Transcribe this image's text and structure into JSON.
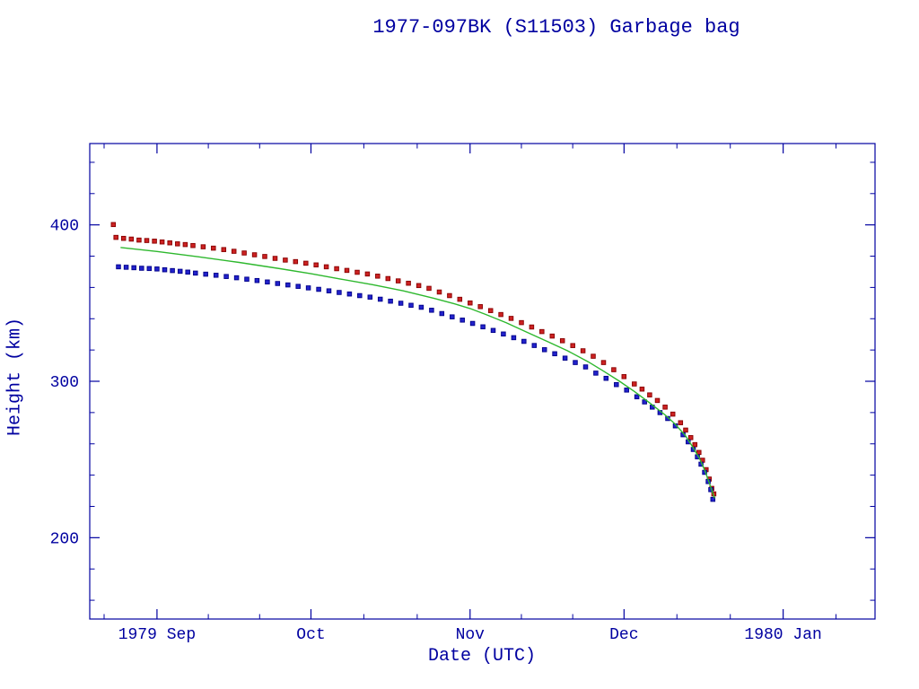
{
  "page": {
    "background": "#ffffff",
    "text_color": "#0000a0",
    "axis_color": "#0000a0"
  },
  "chart_data": {
    "type": "scatter",
    "title": "1977-097BK (S11503) Garbage bag",
    "xlabel": "Date (UTC)",
    "ylabel": "Height (km)",
    "grid": false,
    "legend": "none",
    "x_unit": "days since 1979-09-01",
    "xlim": [
      -13.1,
      139.9
    ],
    "ylim": [
      148,
      452
    ],
    "x_ticks": [
      {
        "t": 0,
        "label": "1979 Sep"
      },
      {
        "t": 30,
        "label": "Oct"
      },
      {
        "t": 61,
        "label": "Nov"
      },
      {
        "t": 91,
        "label": "Dec"
      },
      {
        "t": 122,
        "label": "1980 Jan"
      }
    ],
    "x_minor_ticks": [
      -10.3,
      10,
      20,
      40.3,
      50.7,
      71,
      81,
      101.3,
      111.7,
      132.3
    ],
    "y_ticks": [
      {
        "v": 200,
        "label": "200"
      },
      {
        "v": 300,
        "label": "300"
      },
      {
        "v": 400,
        "label": "400"
      }
    ],
    "y_minor_ticks": [
      160,
      180,
      220,
      240,
      260,
      280,
      320,
      340,
      360,
      380,
      420,
      440
    ],
    "series": [
      {
        "name": "apogee-height",
        "kind": "scatter",
        "marker": "square",
        "color": "#cc2222",
        "edge_color": "#880000",
        "points": [
          [
            -8.5,
            400.2
          ],
          [
            -8,
            392.0
          ],
          [
            -6.5,
            391.4
          ],
          [
            -5,
            390.9
          ],
          [
            -3.5,
            390.3
          ],
          [
            -2,
            390.0
          ],
          [
            -0.5,
            389.6
          ],
          [
            1,
            389.1
          ],
          [
            2.5,
            388.5
          ],
          [
            4,
            387.9
          ],
          [
            5.5,
            387.4
          ],
          [
            7,
            386.8
          ],
          [
            9,
            386.0
          ],
          [
            11,
            385.1
          ],
          [
            13,
            384.2
          ],
          [
            15,
            383.1
          ],
          [
            17,
            382.0
          ],
          [
            19,
            380.9
          ],
          [
            21,
            379.8
          ],
          [
            23,
            378.6
          ],
          [
            25,
            377.5
          ],
          [
            27,
            376.5
          ],
          [
            29,
            375.5
          ],
          [
            31,
            374.4
          ],
          [
            33,
            373.2
          ],
          [
            35,
            372.0
          ],
          [
            37,
            370.9
          ],
          [
            39,
            369.7
          ],
          [
            41,
            368.6
          ],
          [
            43,
            367.2
          ],
          [
            45,
            365.7
          ],
          [
            47,
            364.2
          ],
          [
            49,
            362.7
          ],
          [
            51,
            361.2
          ],
          [
            53,
            359.4
          ],
          [
            55,
            357.1
          ],
          [
            57,
            354.8
          ],
          [
            59,
            352.4
          ],
          [
            61,
            350.1
          ],
          [
            63,
            347.7
          ],
          [
            65,
            345.2
          ],
          [
            67,
            342.7
          ],
          [
            69,
            340.2
          ],
          [
            71,
            337.5
          ],
          [
            73,
            334.7
          ],
          [
            75,
            331.8
          ],
          [
            77,
            328.9
          ],
          [
            79,
            325.9
          ],
          [
            81,
            322.8
          ],
          [
            83,
            319.5
          ],
          [
            85,
            316.0
          ],
          [
            87,
            312.0
          ],
          [
            89,
            307.4
          ],
          [
            91,
            303.0
          ],
          [
            93,
            298.3
          ],
          [
            94.5,
            295.0
          ],
          [
            96,
            291.3
          ],
          [
            97.5,
            287.7
          ],
          [
            99,
            283.5
          ],
          [
            100.5,
            279.0
          ],
          [
            102,
            273.5
          ],
          [
            103,
            268.8
          ],
          [
            104,
            264.0
          ],
          [
            104.8,
            259.5
          ],
          [
            105.6,
            254.5
          ],
          [
            106.3,
            249.5
          ],
          [
            107,
            243.5
          ],
          [
            107.6,
            237.5
          ],
          [
            108.1,
            231.5
          ],
          [
            108.5,
            228.0
          ]
        ]
      },
      {
        "name": "perigee-height",
        "kind": "scatter",
        "marker": "square",
        "color": "#2222cc",
        "edge_color": "#000088",
        "points": [
          [
            -7.5,
            373.2
          ],
          [
            -6,
            372.9
          ],
          [
            -4.5,
            372.6
          ],
          [
            -3,
            372.3
          ],
          [
            -1.5,
            372.1
          ],
          [
            0,
            371.8
          ],
          [
            1.5,
            371.3
          ],
          [
            3,
            370.8
          ],
          [
            4.5,
            370.3
          ],
          [
            6,
            369.8
          ],
          [
            7.5,
            369.2
          ],
          [
            9.5,
            368.5
          ],
          [
            11.5,
            367.8
          ],
          [
            13.5,
            367.0
          ],
          [
            15.5,
            366.2
          ],
          [
            17.5,
            365.3
          ],
          [
            19.5,
            364.4
          ],
          [
            21.5,
            363.5
          ],
          [
            23.5,
            362.5
          ],
          [
            25.5,
            361.6
          ],
          [
            27.5,
            360.7
          ],
          [
            29.5,
            359.7
          ],
          [
            31.5,
            358.8
          ],
          [
            33.5,
            357.8
          ],
          [
            35.5,
            356.8
          ],
          [
            37.5,
            355.8
          ],
          [
            39.5,
            354.8
          ],
          [
            41.5,
            353.8
          ],
          [
            43.5,
            352.5
          ],
          [
            45.5,
            351.2
          ],
          [
            47.5,
            349.9
          ],
          [
            49.5,
            348.6
          ],
          [
            51.5,
            347.3
          ],
          [
            53.5,
            345.4
          ],
          [
            55.5,
            343.3
          ],
          [
            57.5,
            341.2
          ],
          [
            59.5,
            339.1
          ],
          [
            61.5,
            337.0
          ],
          [
            63.5,
            334.8
          ],
          [
            65.5,
            332.5
          ],
          [
            67.5,
            330.2
          ],
          [
            69.5,
            327.9
          ],
          [
            71.5,
            325.5
          ],
          [
            73.5,
            322.9
          ],
          [
            75.5,
            320.2
          ],
          [
            77.5,
            317.6
          ],
          [
            79.5,
            314.8
          ],
          [
            81.5,
            312.0
          ],
          [
            83.5,
            309.2
          ],
          [
            85.5,
            305.2
          ],
          [
            87.5,
            301.9
          ],
          [
            89.5,
            297.9
          ],
          [
            91.5,
            294.4
          ],
          [
            93.5,
            290.1
          ],
          [
            95,
            286.8
          ],
          [
            96.5,
            283.5
          ],
          [
            98,
            280.0
          ],
          [
            99.5,
            276.2
          ],
          [
            101,
            271.5
          ],
          [
            102.5,
            265.8
          ],
          [
            103.5,
            261.3
          ],
          [
            104.5,
            256.4
          ],
          [
            105.3,
            251.7
          ],
          [
            106,
            247.0
          ],
          [
            106.7,
            241.8
          ],
          [
            107.4,
            235.9
          ],
          [
            107.9,
            230.7
          ],
          [
            108.3,
            224.5
          ]
        ]
      },
      {
        "name": "mean-height-fit",
        "kind": "line",
        "color": "#2eb82e",
        "points": [
          [
            -7,
            385.5
          ],
          [
            0,
            383.0
          ],
          [
            8,
            379.6
          ],
          [
            16,
            376.0
          ],
          [
            24,
            372.0
          ],
          [
            30,
            368.8
          ],
          [
            36,
            365.2
          ],
          [
            42,
            361.8
          ],
          [
            48,
            357.8
          ],
          [
            54,
            353.0
          ],
          [
            58,
            349.5
          ],
          [
            61,
            346.5
          ],
          [
            64,
            342.8
          ],
          [
            68,
            337.5
          ],
          [
            72,
            331.5
          ],
          [
            76,
            325.5
          ],
          [
            80,
            319.5
          ],
          [
            84,
            312.5
          ],
          [
            87,
            306.5
          ],
          [
            90,
            300.3
          ],
          [
            93,
            293.5
          ],
          [
            96,
            286.2
          ],
          [
            99,
            278.5
          ],
          [
            101,
            272.5
          ],
          [
            103,
            265.0
          ],
          [
            104.5,
            257.5
          ],
          [
            105.8,
            250.0
          ],
          [
            106.8,
            242.5
          ],
          [
            107.6,
            235.0
          ],
          [
            108.2,
            229.5
          ],
          [
            108.6,
            225.5
          ]
        ]
      }
    ]
  }
}
